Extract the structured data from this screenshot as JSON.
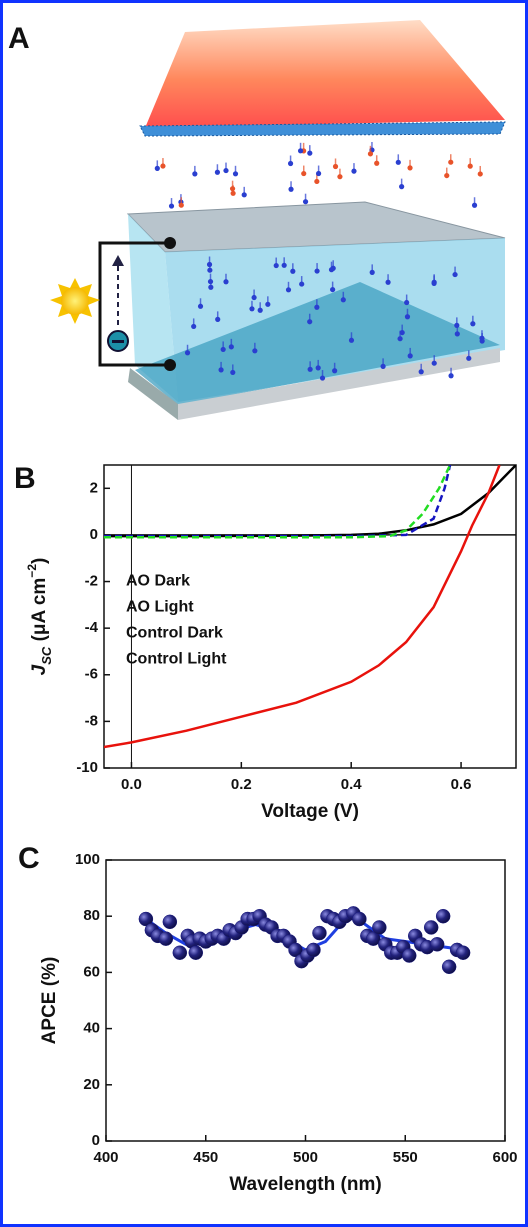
{
  "panel_labels": [
    "A",
    "B",
    "C"
  ],
  "chart_data": [
    {
      "type": "line",
      "xlabel": "Voltage (V)",
      "ylabel": [
        "J",
        "SC",
        " (μA cm",
        "−2",
        ")"
      ],
      "xlim": [
        -0.05,
        0.7
      ],
      "xticks": [
        {
          "value": 0,
          "label": "0.0"
        },
        0.2,
        0.4,
        0.6
      ],
      "ylim": [
        -10,
        3
      ],
      "yticks": [
        -10,
        -8,
        -6,
        -4,
        -2,
        0,
        2
      ],
      "legend": "center-left",
      "series": [
        {
          "name": "AO Dark",
          "color": "#000000",
          "dashed": false,
          "x": [
            -0.05,
            0,
            0.1,
            0.2,
            0.3,
            0.4,
            0.45,
            0.5,
            0.55,
            0.6,
            0.65,
            0.7
          ],
          "values": [
            -0.05,
            -0.05,
            -0.05,
            -0.04,
            -0.03,
            0,
            0.05,
            0.2,
            0.45,
            0.9,
            1.8,
            3
          ]
        },
        {
          "name": "AO Light",
          "color": "#e8120c",
          "dashed": false,
          "x": [
            -0.05,
            0,
            0.1,
            0.2,
            0.3,
            0.4,
            0.45,
            0.5,
            0.55,
            0.6,
            0.62,
            0.65,
            0.67
          ],
          "values": [
            -9.1,
            -8.9,
            -8.4,
            -7.8,
            -7.2,
            -6.3,
            -5.6,
            -4.6,
            -3.1,
            -0.7,
            0.4,
            1.8,
            3
          ]
        },
        {
          "name": "Control Dark",
          "color": "#1515c0",
          "dashed": true,
          "x": [
            -0.05,
            0,
            0.2,
            0.4,
            0.5,
            0.55,
            0.57,
            0.58
          ],
          "values": [
            -0.05,
            -0.05,
            -0.05,
            -0.05,
            0,
            0.7,
            2,
            3
          ]
        },
        {
          "name": "Control Light",
          "color": "#22dd22",
          "dashed": true,
          "x": [
            -0.05,
            0,
            0.2,
            0.4,
            0.47,
            0.5,
            0.53,
            0.56,
            0.58
          ],
          "values": [
            -0.1,
            -0.1,
            -0.1,
            -0.1,
            -0.05,
            0.2,
            0.9,
            2.0,
            3
          ]
        }
      ]
    },
    {
      "type": "scatter",
      "xlabel": "Wavelength (nm)",
      "ylabel": "APCE (%)",
      "xlim": [
        400,
        600
      ],
      "xticks": [
        400,
        450,
        500,
        550,
        600
      ],
      "ylim": [
        0,
        100
      ],
      "yticks": [
        0,
        20,
        40,
        60,
        80,
        100
      ],
      "color": "#1a1a80",
      "x": [
        420,
        423,
        426,
        430,
        432,
        437,
        441,
        443,
        445,
        447,
        450,
        453,
        456,
        459,
        462,
        465,
        468,
        471,
        474,
        477,
        480,
        483,
        486,
        489,
        492,
        495,
        498,
        501,
        504,
        507,
        511,
        514,
        517,
        520,
        524,
        527,
        531,
        534,
        537,
        540,
        543,
        546,
        549,
        552,
        555,
        558,
        561,
        563,
        566,
        569,
        572,
        576,
        579
      ],
      "values": [
        79,
        75,
        73,
        72,
        78,
        67,
        73,
        71,
        67,
        72,
        71,
        72,
        73,
        72,
        75,
        74,
        76,
        79,
        79,
        80,
        77,
        76,
        73,
        73,
        71,
        68,
        64,
        66,
        68,
        74,
        80,
        79,
        78,
        80,
        81,
        79,
        73,
        72,
        76,
        70,
        67,
        67,
        69,
        66,
        73,
        70,
        69,
        76,
        70,
        80,
        62,
        68,
        67
      ],
      "trend": {
        "color": "#1f3fe0",
        "x": [
          420,
          430,
          440,
          450,
          460,
          470,
          475,
          480,
          490,
          500,
          510,
          520,
          525,
          530,
          540,
          550,
          560,
          570,
          580
        ],
        "values": [
          79,
          74,
          70,
          71,
          73,
          76,
          77,
          76,
          72,
          68,
          71,
          79,
          80,
          77,
          72,
          71,
          70,
          69,
          68
        ]
      }
    }
  ]
}
